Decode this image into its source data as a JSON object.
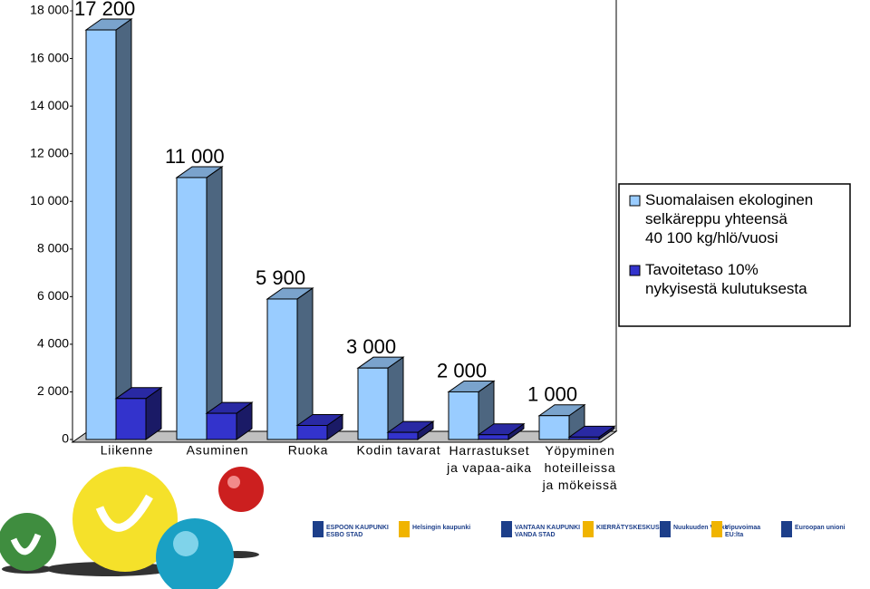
{
  "chart_data": {
    "type": "bar3d",
    "categories": [
      "Liikenne",
      "Asuminen",
      "Ruoka",
      "Kodin tavarat",
      "Harrastukset\nja vapaa-aika",
      "Yöpyminen\nhoteilleissa\nja mökeissä"
    ],
    "series": [
      {
        "name": "Suomalaisen ekologinen\nselkäreppu yhteensä\n40 100 kg/hlö/vuosi",
        "color": "#99ccff",
        "values": [
          17200,
          11000,
          5900,
          3000,
          2000,
          1000
        ],
        "value_labels": [
          "17 200",
          "11 000",
          "5 900",
          "3 000",
          "2 000",
          "1 000"
        ]
      },
      {
        "name": "Tavoitetaso 10%\nnykyisestä kulutuksesta",
        "color": "#3333cc",
        "values": [
          1720,
          1100,
          590,
          300,
          200,
          100
        ]
      }
    ],
    "ylim": [
      0,
      18000
    ],
    "yticks": [
      0,
      {
        "value": 2000,
        "label": "2 000"
      },
      {
        "value": 4000,
        "label": "4 000"
      },
      {
        "value": 6000,
        "label": "6 000"
      },
      {
        "value": 8000,
        "label": "8 000"
      },
      {
        "value": 10000,
        "label": "10 000"
      },
      {
        "value": 12000,
        "label": "12 000"
      },
      {
        "value": 14000,
        "label": "14 000"
      },
      {
        "value": 16000,
        "label": "16 000"
      },
      {
        "value": 18000,
        "label": "18 000"
      }
    ],
    "legend": "right"
  },
  "logos": [
    "ESPOON KAUPUNKI\nESBO STAD",
    "Helsingin kaupunki",
    "VANTAAN KAUPUNKI\nVANDA STAD",
    "KIERRÄTYSKESKUS",
    "Nuukuuden Viikko",
    "Vipuvoimaa\nEU:lta",
    "Euroopan unioni"
  ]
}
